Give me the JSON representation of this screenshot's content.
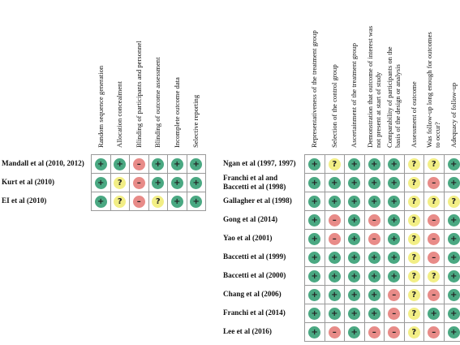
{
  "colors": {
    "low": "#4aa882",
    "unclear": "#f2ee85",
    "high": "#e88b88"
  },
  "symbols": {
    "low": "+",
    "unclear": "?",
    "high": "–"
  },
  "left_panel": {
    "domains": [
      "Random sequence generation",
      "Allocation concealment",
      "Blinding of participants and personnel",
      "Blinding of outcome assessment",
      "Incomplete outcome data",
      "Selective reporting"
    ],
    "studies": [
      {
        "label": [
          "Mandall et al (2010, 2012)"
        ],
        "ratings": [
          "low",
          "low",
          "high",
          "low",
          "low",
          "low"
        ]
      },
      {
        "label": [
          "Kurt et al (2010)"
        ],
        "ratings": [
          "low",
          "unclear",
          "high",
          "low",
          "low",
          "low"
        ]
      },
      {
        "label": [
          "EI et al (2010)"
        ],
        "ratings": [
          "low",
          "unclear",
          "high",
          "unclear",
          "low",
          "low"
        ]
      }
    ]
  },
  "right_panel": {
    "domains": [
      [
        "Representativeness of the treatment group"
      ],
      [
        "Selection of the control group"
      ],
      [
        "Ascertainment of the treatment group"
      ],
      [
        "Demonstration that outcome of interest was",
        "not present at start of study"
      ],
      [
        "Comparability of participants on the",
        "basis of the design or analysis"
      ],
      [
        "Assessment of outcome"
      ],
      [
        "Was follow-up long enough for outcomes",
        "to occur?"
      ],
      [
        "Adequacy of follow-up"
      ]
    ],
    "studies": [
      {
        "label": [
          "Ngan et al (1997, 1997)"
        ],
        "ratings": [
          "low",
          "unclear",
          "low",
          "low",
          "low",
          "unclear",
          "unclear",
          "low"
        ]
      },
      {
        "label": [
          "Franchi et al and",
          "Baccetti et al (1998)"
        ],
        "ratings": [
          "low",
          "low",
          "low",
          "low",
          "low",
          "unclear",
          "high",
          "low"
        ]
      },
      {
        "label": [
          "Gallagher et al (1998)"
        ],
        "ratings": [
          "low",
          "low",
          "low",
          "low",
          "low",
          "unclear",
          "unclear",
          "unclear"
        ]
      },
      {
        "label": [
          "Gong et al (2014)"
        ],
        "ratings": [
          "low",
          "high",
          "low",
          "high",
          "low",
          "unclear",
          "high",
          "low"
        ]
      },
      {
        "label": [
          "Yao et al (2001)"
        ],
        "ratings": [
          "low",
          "high",
          "low",
          "high",
          "low",
          "unclear",
          "high",
          "low"
        ]
      },
      {
        "label": [
          "Baccetti et al (1999)"
        ],
        "ratings": [
          "low",
          "low",
          "low",
          "low",
          "low",
          "unclear",
          "high",
          "low"
        ]
      },
      {
        "label": [
          "Baccetti et al (2000)"
        ],
        "ratings": [
          "low",
          "low",
          "low",
          "low",
          "low",
          "unclear",
          "unclear",
          "low"
        ]
      },
      {
        "label": [
          "Chang et al (2006)"
        ],
        "ratings": [
          "low",
          "low",
          "low",
          "low",
          "high",
          "unclear",
          "high",
          "low"
        ]
      },
      {
        "label": [
          "Franchi et al (2014)"
        ],
        "ratings": [
          "low",
          "low",
          "low",
          "low",
          "high",
          "unclear",
          "low",
          "low"
        ]
      },
      {
        "label": [
          "Lee et al (2016)"
        ],
        "ratings": [
          "low",
          "high",
          "low",
          "high",
          "high",
          "unclear",
          "high",
          "low"
        ]
      }
    ]
  }
}
